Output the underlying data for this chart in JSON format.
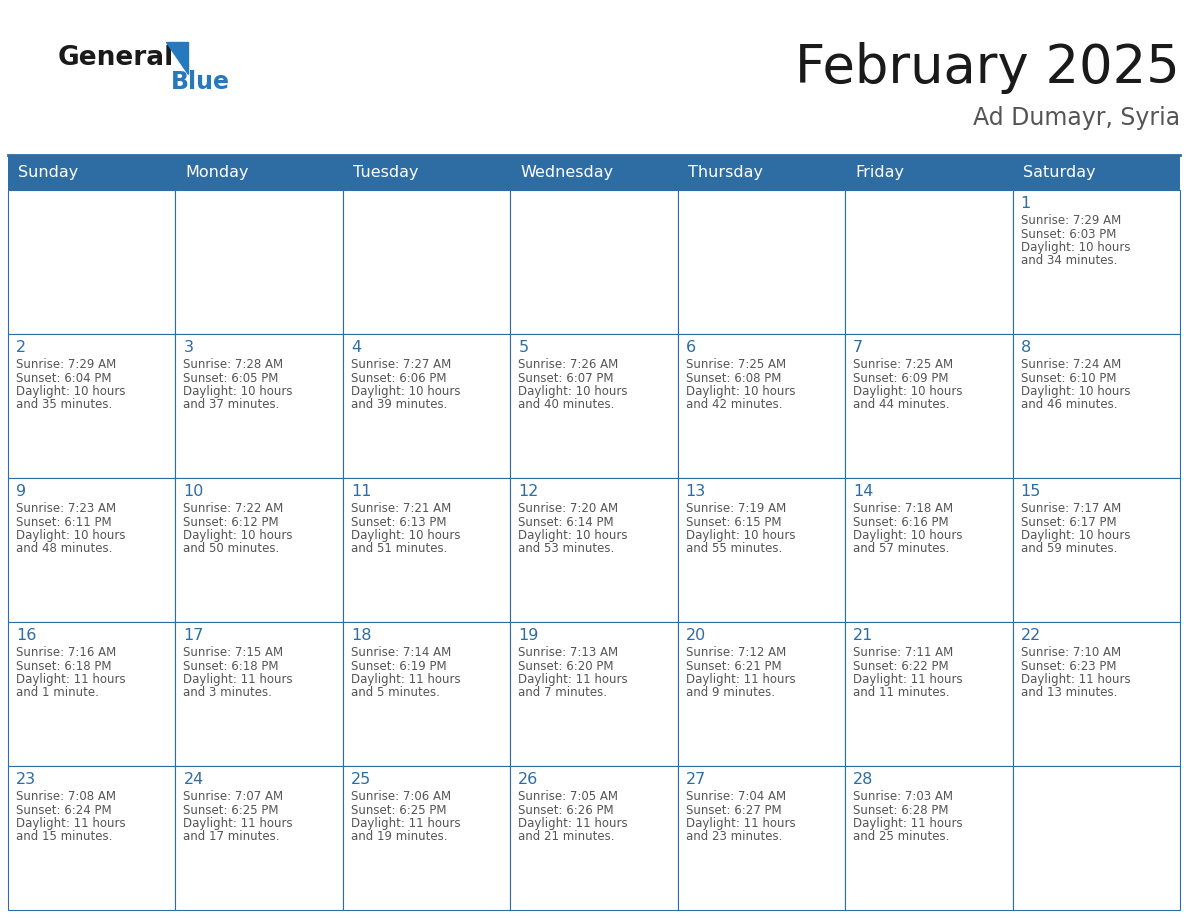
{
  "title": "February 2025",
  "subtitle": "Ad Dumayr, Syria",
  "days_of_week": [
    "Sunday",
    "Monday",
    "Tuesday",
    "Wednesday",
    "Thursday",
    "Friday",
    "Saturday"
  ],
  "header_bg": "#2E6DA4",
  "header_text": "#FFFFFF",
  "cell_bg": "#FFFFFF",
  "grid_line_color": "#2E6DA4",
  "day_num_color": "#2E6DA4",
  "cell_text_color": "#555555",
  "title_color": "#1a1a1a",
  "subtitle_color": "#555555",
  "logo_general_color": "#1a1a1a",
  "logo_blue_color": "#2779BD",
  "calendar_data": [
    [
      null,
      null,
      null,
      null,
      null,
      null,
      {
        "day": 1,
        "sunrise": "7:29 AM",
        "sunset": "6:03 PM",
        "daylight_l1": "10 hours",
        "daylight_l2": "and 34 minutes."
      }
    ],
    [
      {
        "day": 2,
        "sunrise": "7:29 AM",
        "sunset": "6:04 PM",
        "daylight_l1": "10 hours",
        "daylight_l2": "and 35 minutes."
      },
      {
        "day": 3,
        "sunrise": "7:28 AM",
        "sunset": "6:05 PM",
        "daylight_l1": "10 hours",
        "daylight_l2": "and 37 minutes."
      },
      {
        "day": 4,
        "sunrise": "7:27 AM",
        "sunset": "6:06 PM",
        "daylight_l1": "10 hours",
        "daylight_l2": "and 39 minutes."
      },
      {
        "day": 5,
        "sunrise": "7:26 AM",
        "sunset": "6:07 PM",
        "daylight_l1": "10 hours",
        "daylight_l2": "and 40 minutes."
      },
      {
        "day": 6,
        "sunrise": "7:25 AM",
        "sunset": "6:08 PM",
        "daylight_l1": "10 hours",
        "daylight_l2": "and 42 minutes."
      },
      {
        "day": 7,
        "sunrise": "7:25 AM",
        "sunset": "6:09 PM",
        "daylight_l1": "10 hours",
        "daylight_l2": "and 44 minutes."
      },
      {
        "day": 8,
        "sunrise": "7:24 AM",
        "sunset": "6:10 PM",
        "daylight_l1": "10 hours",
        "daylight_l2": "and 46 minutes."
      }
    ],
    [
      {
        "day": 9,
        "sunrise": "7:23 AM",
        "sunset": "6:11 PM",
        "daylight_l1": "10 hours",
        "daylight_l2": "and 48 minutes."
      },
      {
        "day": 10,
        "sunrise": "7:22 AM",
        "sunset": "6:12 PM",
        "daylight_l1": "10 hours",
        "daylight_l2": "and 50 minutes."
      },
      {
        "day": 11,
        "sunrise": "7:21 AM",
        "sunset": "6:13 PM",
        "daylight_l1": "10 hours",
        "daylight_l2": "and 51 minutes."
      },
      {
        "day": 12,
        "sunrise": "7:20 AM",
        "sunset": "6:14 PM",
        "daylight_l1": "10 hours",
        "daylight_l2": "and 53 minutes."
      },
      {
        "day": 13,
        "sunrise": "7:19 AM",
        "sunset": "6:15 PM",
        "daylight_l1": "10 hours",
        "daylight_l2": "and 55 minutes."
      },
      {
        "day": 14,
        "sunrise": "7:18 AM",
        "sunset": "6:16 PM",
        "daylight_l1": "10 hours",
        "daylight_l2": "and 57 minutes."
      },
      {
        "day": 15,
        "sunrise": "7:17 AM",
        "sunset": "6:17 PM",
        "daylight_l1": "10 hours",
        "daylight_l2": "and 59 minutes."
      }
    ],
    [
      {
        "day": 16,
        "sunrise": "7:16 AM",
        "sunset": "6:18 PM",
        "daylight_l1": "11 hours",
        "daylight_l2": "and 1 minute."
      },
      {
        "day": 17,
        "sunrise": "7:15 AM",
        "sunset": "6:18 PM",
        "daylight_l1": "11 hours",
        "daylight_l2": "and 3 minutes."
      },
      {
        "day": 18,
        "sunrise": "7:14 AM",
        "sunset": "6:19 PM",
        "daylight_l1": "11 hours",
        "daylight_l2": "and 5 minutes."
      },
      {
        "day": 19,
        "sunrise": "7:13 AM",
        "sunset": "6:20 PM",
        "daylight_l1": "11 hours",
        "daylight_l2": "and 7 minutes."
      },
      {
        "day": 20,
        "sunrise": "7:12 AM",
        "sunset": "6:21 PM",
        "daylight_l1": "11 hours",
        "daylight_l2": "and 9 minutes."
      },
      {
        "day": 21,
        "sunrise": "7:11 AM",
        "sunset": "6:22 PM",
        "daylight_l1": "11 hours",
        "daylight_l2": "and 11 minutes."
      },
      {
        "day": 22,
        "sunrise": "7:10 AM",
        "sunset": "6:23 PM",
        "daylight_l1": "11 hours",
        "daylight_l2": "and 13 minutes."
      }
    ],
    [
      {
        "day": 23,
        "sunrise": "7:08 AM",
        "sunset": "6:24 PM",
        "daylight_l1": "11 hours",
        "daylight_l2": "and 15 minutes."
      },
      {
        "day": 24,
        "sunrise": "7:07 AM",
        "sunset": "6:25 PM",
        "daylight_l1": "11 hours",
        "daylight_l2": "and 17 minutes."
      },
      {
        "day": 25,
        "sunrise": "7:06 AM",
        "sunset": "6:25 PM",
        "daylight_l1": "11 hours",
        "daylight_l2": "and 19 minutes."
      },
      {
        "day": 26,
        "sunrise": "7:05 AM",
        "sunset": "6:26 PM",
        "daylight_l1": "11 hours",
        "daylight_l2": "and 21 minutes."
      },
      {
        "day": 27,
        "sunrise": "7:04 AM",
        "sunset": "6:27 PM",
        "daylight_l1": "11 hours",
        "daylight_l2": "and 23 minutes."
      },
      {
        "day": 28,
        "sunrise": "7:03 AM",
        "sunset": "6:28 PM",
        "daylight_l1": "11 hours",
        "daylight_l2": "and 25 minutes."
      },
      null
    ]
  ],
  "figsize": [
    11.88,
    9.18
  ],
  "dpi": 100
}
